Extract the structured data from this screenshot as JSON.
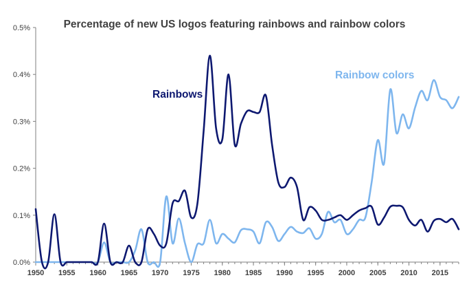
{
  "chart_data": {
    "type": "line",
    "title": "Percentage of new US logos featuring rainbows and rainbow colors",
    "xlabel": "",
    "ylabel": "",
    "xlim": [
      1950,
      2018
    ],
    "ylim": [
      0,
      0.5
    ],
    "x_ticks": [
      1950,
      1955,
      1960,
      1965,
      1970,
      1975,
      1980,
      1985,
      1990,
      1995,
      2000,
      2005,
      2010,
      2015
    ],
    "y_ticks": [
      {
        "value": 0,
        "label": "0.0%"
      },
      {
        "value": 0.1,
        "label": "0.1%"
      },
      {
        "value": 0.2,
        "label": "0.2%"
      },
      {
        "value": 0.3,
        "label": "0.3%"
      },
      {
        "value": 0.4,
        "label": "0.4%"
      },
      {
        "value": 0.5,
        "label": "0.5%"
      }
    ],
    "grid": false,
    "legend": "inline labels",
    "x": [
      1950,
      1951,
      1952,
      1953,
      1954,
      1955,
      1956,
      1957,
      1958,
      1959,
      1960,
      1961,
      1962,
      1963,
      1964,
      1965,
      1966,
      1967,
      1968,
      1969,
      1970,
      1971,
      1972,
      1973,
      1974,
      1975,
      1976,
      1977,
      1978,
      1979,
      1980,
      1981,
      1982,
      1983,
      1984,
      1985,
      1986,
      1987,
      1988,
      1989,
      1990,
      1991,
      1992,
      1993,
      1994,
      1995,
      1996,
      1997,
      1998,
      1999,
      2000,
      2001,
      2002,
      2003,
      2004,
      2005,
      2006,
      2007,
      2008,
      2009,
      2010,
      2011,
      2012,
      2013,
      2014,
      2015,
      2016,
      2017,
      2018
    ],
    "series": [
      {
        "name": "Rainbows",
        "color": "#0d1870",
        "values": [
          0.113,
          0,
          0,
          0.102,
          0,
          0,
          0,
          0,
          0,
          0,
          0,
          0.082,
          0,
          0,
          0,
          0.035,
          0,
          0,
          0.07,
          0.06,
          0.035,
          0.04,
          0.125,
          0.13,
          0.152,
          0.095,
          0.125,
          0.28,
          0.44,
          0.285,
          0.262,
          0.4,
          0.25,
          0.295,
          0.322,
          0.32,
          0.32,
          0.355,
          0.25,
          0.17,
          0.16,
          0.18,
          0.16,
          0.09,
          0.117,
          0.11,
          0.09,
          0.09,
          0.095,
          0.1,
          0.09,
          0.1,
          0.11,
          0.115,
          0.118,
          0.08,
          0.095,
          0.118,
          0.12,
          0.117,
          0.09,
          0.078,
          0.09,
          0.065,
          0.088,
          0.092,
          0.085,
          0.092,
          0.07
        ]
      },
      {
        "name": "Rainbow colors",
        "color": "#7eb6ee",
        "values": [
          0,
          0,
          0,
          0,
          0,
          0,
          0,
          0,
          0,
          0,
          0,
          0.042,
          0,
          0,
          0,
          0,
          0.025,
          0.07,
          0,
          0,
          0,
          0.14,
          0.04,
          0.093,
          0.04,
          0,
          0.038,
          0.04,
          0.09,
          0.04,
          0.06,
          0.05,
          0.042,
          0.068,
          0.07,
          0.065,
          0.04,
          0.085,
          0.075,
          0.045,
          0.06,
          0.075,
          0.065,
          0.062,
          0.072,
          0.05,
          0.06,
          0.107,
          0.085,
          0.09,
          0.06,
          0.07,
          0.09,
          0.095,
          0.17,
          0.26,
          0.21,
          0.368,
          0.275,
          0.315,
          0.285,
          0.33,
          0.365,
          0.345,
          0.388,
          0.352,
          0.345,
          0.328,
          0.352
        ]
      }
    ]
  }
}
